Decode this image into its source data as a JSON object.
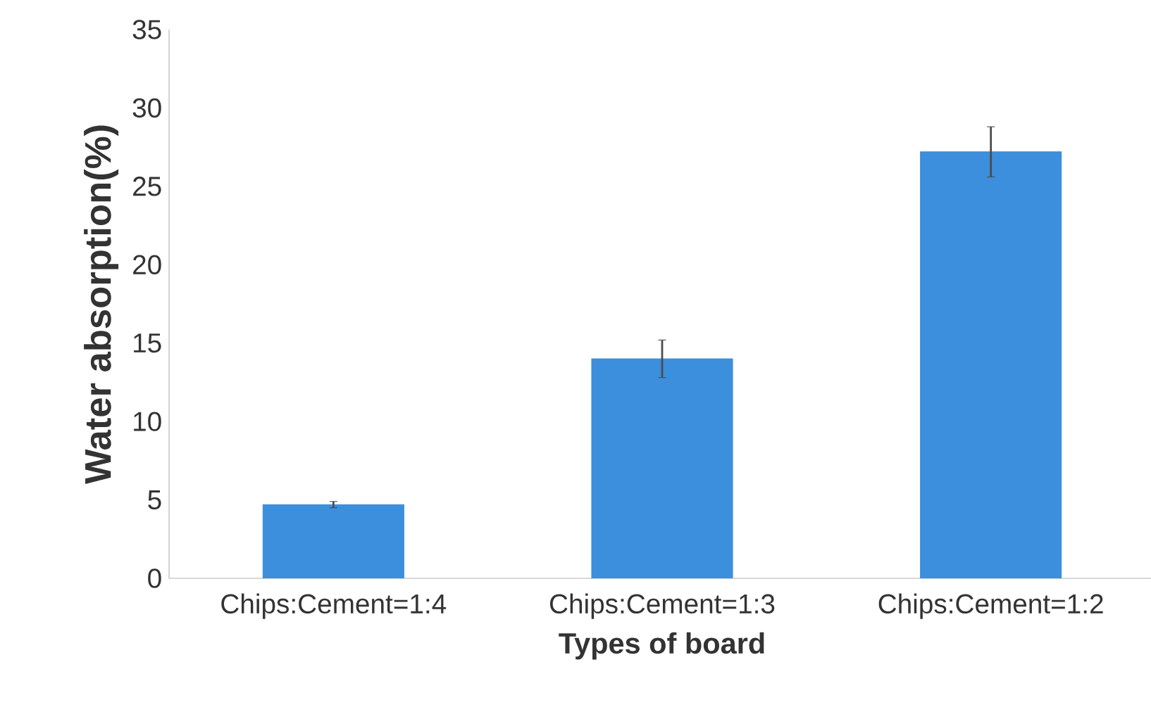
{
  "chart_data": {
    "type": "bar",
    "xlabel": "Types of board",
    "ylabel": "Water absorption(%)",
    "categories": [
      "Chips:Cement=1:4",
      "Chips:Cement=1:3",
      "Chips:Cement=1:2"
    ],
    "values": [
      4.7,
      14.0,
      27.2
    ],
    "errors": [
      0.2,
      1.2,
      1.6
    ],
    "color": "#3b8fdc",
    "ylim": [
      0,
      35
    ],
    "yticks": [
      0,
      5,
      10,
      15,
      20,
      25,
      30,
      35
    ],
    "grid": false
  }
}
